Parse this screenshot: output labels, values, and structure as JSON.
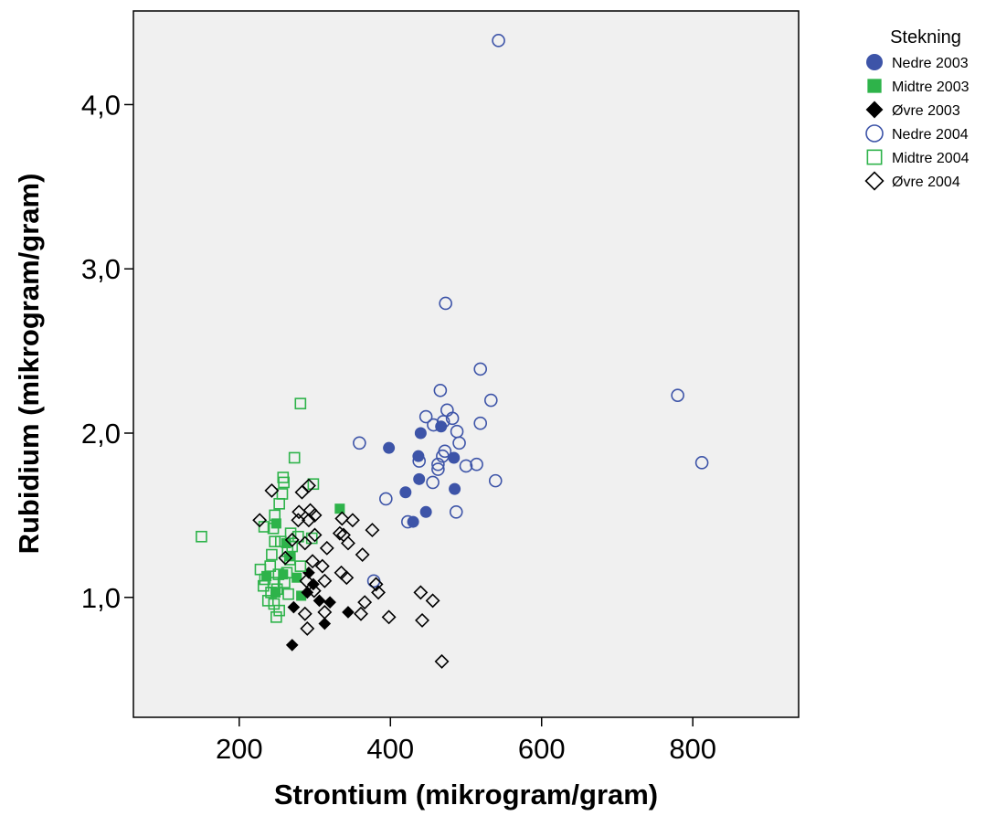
{
  "chart_data": {
    "type": "scatter",
    "title": "",
    "xlabel": "Strontium (mikrogram/gram)",
    "ylabel": "Rubidium (mikrogram/gram)",
    "xlim": [
      60,
      940
    ],
    "ylim": [
      0.27,
      4.57
    ],
    "x_ticks": [
      200,
      400,
      600,
      800
    ],
    "x_tick_labels": [
      "200",
      "400",
      "600",
      "800"
    ],
    "y_ticks": [
      1.0,
      2.0,
      3.0,
      4.0
    ],
    "y_tick_labels": [
      "1,0",
      "2,0",
      "3,0",
      "4,0"
    ],
    "grid": false,
    "plot_background": "#f0f0f0",
    "legend": {
      "title": "Stekning",
      "position": "top-right-outside"
    },
    "series": [
      {
        "name": "Nedre 2003",
        "marker": "circle",
        "filled": true,
        "color": "#3d54a8",
        "points": [
          [
            398,
            1.91
          ],
          [
            437,
            1.86
          ],
          [
            440,
            2.0
          ],
          [
            467,
            2.04
          ],
          [
            484,
            1.85
          ],
          [
            438,
            1.72
          ],
          [
            420,
            1.64
          ],
          [
            485,
            1.66
          ],
          [
            447,
            1.52
          ],
          [
            430,
            1.46
          ]
        ]
      },
      {
        "name": "Midtre 2003",
        "marker": "square",
        "filled": true,
        "color": "#2eb34a",
        "points": [
          [
            333,
            1.54
          ],
          [
            249,
            1.45
          ],
          [
            262,
            1.33
          ],
          [
            268,
            1.25
          ],
          [
            258,
            1.14
          ],
          [
            276,
            1.12
          ],
          [
            236,
            1.13
          ],
          [
            248,
            1.03
          ],
          [
            282,
            1.01
          ]
        ]
      },
      {
        "name": "Øvre 2003",
        "marker": "diamond",
        "filled": true,
        "color": "#000000",
        "points": [
          [
            292,
            1.15
          ],
          [
            298,
            1.08
          ],
          [
            290,
            1.03
          ],
          [
            306,
            0.98
          ],
          [
            320,
            0.97
          ],
          [
            272,
            0.94
          ],
          [
            344,
            0.91
          ],
          [
            313,
            0.84
          ],
          [
            270,
            0.71
          ]
        ]
      },
      {
        "name": "Nedre 2004",
        "marker": "circle",
        "filled": false,
        "color": "#3d54a8",
        "points": [
          [
            543,
            4.39
          ],
          [
            473,
            2.79
          ],
          [
            519,
            2.39
          ],
          [
            466,
            2.26
          ],
          [
            780,
            2.23
          ],
          [
            533,
            2.2
          ],
          [
            475,
            2.14
          ],
          [
            447,
            2.1
          ],
          [
            482,
            2.09
          ],
          [
            470,
            2.07
          ],
          [
            457,
            2.05
          ],
          [
            519,
            2.06
          ],
          [
            488,
            2.01
          ],
          [
            491,
            1.94
          ],
          [
            359,
            1.94
          ],
          [
            472,
            1.89
          ],
          [
            438,
            1.83
          ],
          [
            463,
            1.81
          ],
          [
            469,
            1.86
          ],
          [
            500,
            1.8
          ],
          [
            514,
            1.81
          ],
          [
            812,
            1.82
          ],
          [
            463,
            1.78
          ],
          [
            456,
            1.7
          ],
          [
            539,
            1.71
          ],
          [
            394,
            1.6
          ],
          [
            487,
            1.52
          ],
          [
            423,
            1.46
          ],
          [
            378,
            1.1
          ]
        ]
      },
      {
        "name": "Midtre 2004",
        "marker": "square",
        "filled": false,
        "color": "#2eb34a",
        "points": [
          [
            281,
            2.18
          ],
          [
            273,
            1.85
          ],
          [
            258,
            1.73
          ],
          [
            259,
            1.7
          ],
          [
            298,
            1.69
          ],
          [
            257,
            1.63
          ],
          [
            253,
            1.57
          ],
          [
            247,
            1.5
          ],
          [
            150,
            1.37
          ],
          [
            233,
            1.43
          ],
          [
            245,
            1.42
          ],
          [
            268,
            1.39
          ],
          [
            278,
            1.37
          ],
          [
            296,
            1.36
          ],
          [
            255,
            1.34
          ],
          [
            270,
            1.31
          ],
          [
            247,
            1.34
          ],
          [
            264,
            1.28
          ],
          [
            243,
            1.26
          ],
          [
            267,
            1.23
          ],
          [
            281,
            1.19
          ],
          [
            241,
            1.19
          ],
          [
            228,
            1.17
          ],
          [
            263,
            1.15
          ],
          [
            252,
            1.14
          ],
          [
            234,
            1.11
          ],
          [
            260,
            1.09
          ],
          [
            245,
            1.09
          ],
          [
            232,
            1.07
          ],
          [
            250,
            1.05
          ],
          [
            242,
            1.03
          ],
          [
            265,
            1.02
          ],
          [
            238,
            0.98
          ],
          [
            246,
            0.96
          ],
          [
            253,
            0.92
          ],
          [
            249,
            0.88
          ]
        ]
      },
      {
        "name": "Øvre 2004",
        "marker": "diamond",
        "filled": false,
        "color": "#000000",
        "points": [
          [
            292,
            1.68
          ],
          [
            283,
            1.64
          ],
          [
            243,
            1.65
          ],
          [
            294,
            1.53
          ],
          [
            300,
            1.5
          ],
          [
            279,
            1.52
          ],
          [
            227,
            1.47
          ],
          [
            278,
            1.47
          ],
          [
            292,
            1.47
          ],
          [
            336,
            1.48
          ],
          [
            350,
            1.47
          ],
          [
            376,
            1.41
          ],
          [
            333,
            1.39
          ],
          [
            338,
            1.38
          ],
          [
            300,
            1.38
          ],
          [
            270,
            1.35
          ],
          [
            344,
            1.33
          ],
          [
            287,
            1.33
          ],
          [
            316,
            1.3
          ],
          [
            363,
            1.26
          ],
          [
            261,
            1.24
          ],
          [
            297,
            1.22
          ],
          [
            310,
            1.19
          ],
          [
            335,
            1.15
          ],
          [
            342,
            1.12
          ],
          [
            381,
            1.08
          ],
          [
            289,
            1.1
          ],
          [
            313,
            1.1
          ],
          [
            299,
            1.04
          ],
          [
            384,
            1.03
          ],
          [
            366,
            0.97
          ],
          [
            440,
            1.03
          ],
          [
            456,
            0.98
          ],
          [
            313,
            0.91
          ],
          [
            287,
            0.9
          ],
          [
            361,
            0.9
          ],
          [
            398,
            0.88
          ],
          [
            442,
            0.86
          ],
          [
            290,
            0.81
          ],
          [
            468,
            0.61
          ]
        ]
      }
    ]
  }
}
